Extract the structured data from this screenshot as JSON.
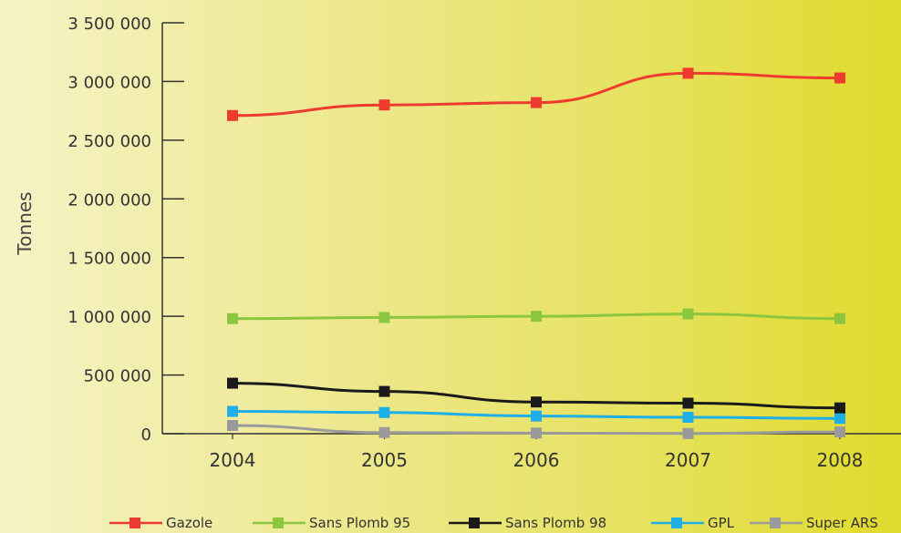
{
  "chart_data": {
    "type": "line",
    "ylabel": "Tonnes",
    "xlabel": "",
    "x": [
      "2004",
      "2005",
      "2006",
      "2007",
      "2008"
    ],
    "ylim": [
      0,
      3500000
    ],
    "yticks": [
      0,
      500000,
      1000000,
      1500000,
      2000000,
      2500000,
      3000000,
      3500000
    ],
    "ytick_labels": [
      "0",
      "500 000",
      "1 000 000",
      "1 500 000",
      "2 000 000",
      "2 500 000",
      "3 000 000",
      "3 500 000"
    ],
    "grid": false,
    "legend_position": "bottom",
    "series": [
      {
        "name": "Gazole",
        "color": "#ee3b2f",
        "values": [
          2710000,
          2800000,
          2820000,
          3070000,
          3030000
        ]
      },
      {
        "name": "Sans Plomb 95",
        "color": "#8cc63f",
        "values": [
          980000,
          990000,
          1000000,
          1020000,
          980000
        ]
      },
      {
        "name": "Sans Plomb 98",
        "color": "#1a1a1a",
        "values": [
          430000,
          360000,
          270000,
          260000,
          220000
        ]
      },
      {
        "name": "GPL",
        "color": "#1eaee8",
        "values": [
          190000,
          180000,
          150000,
          140000,
          130000
        ]
      },
      {
        "name": "Super ARS",
        "color": "#9a9a9a",
        "values": [
          70000,
          10000,
          5000,
          2000,
          15000
        ]
      }
    ]
  }
}
